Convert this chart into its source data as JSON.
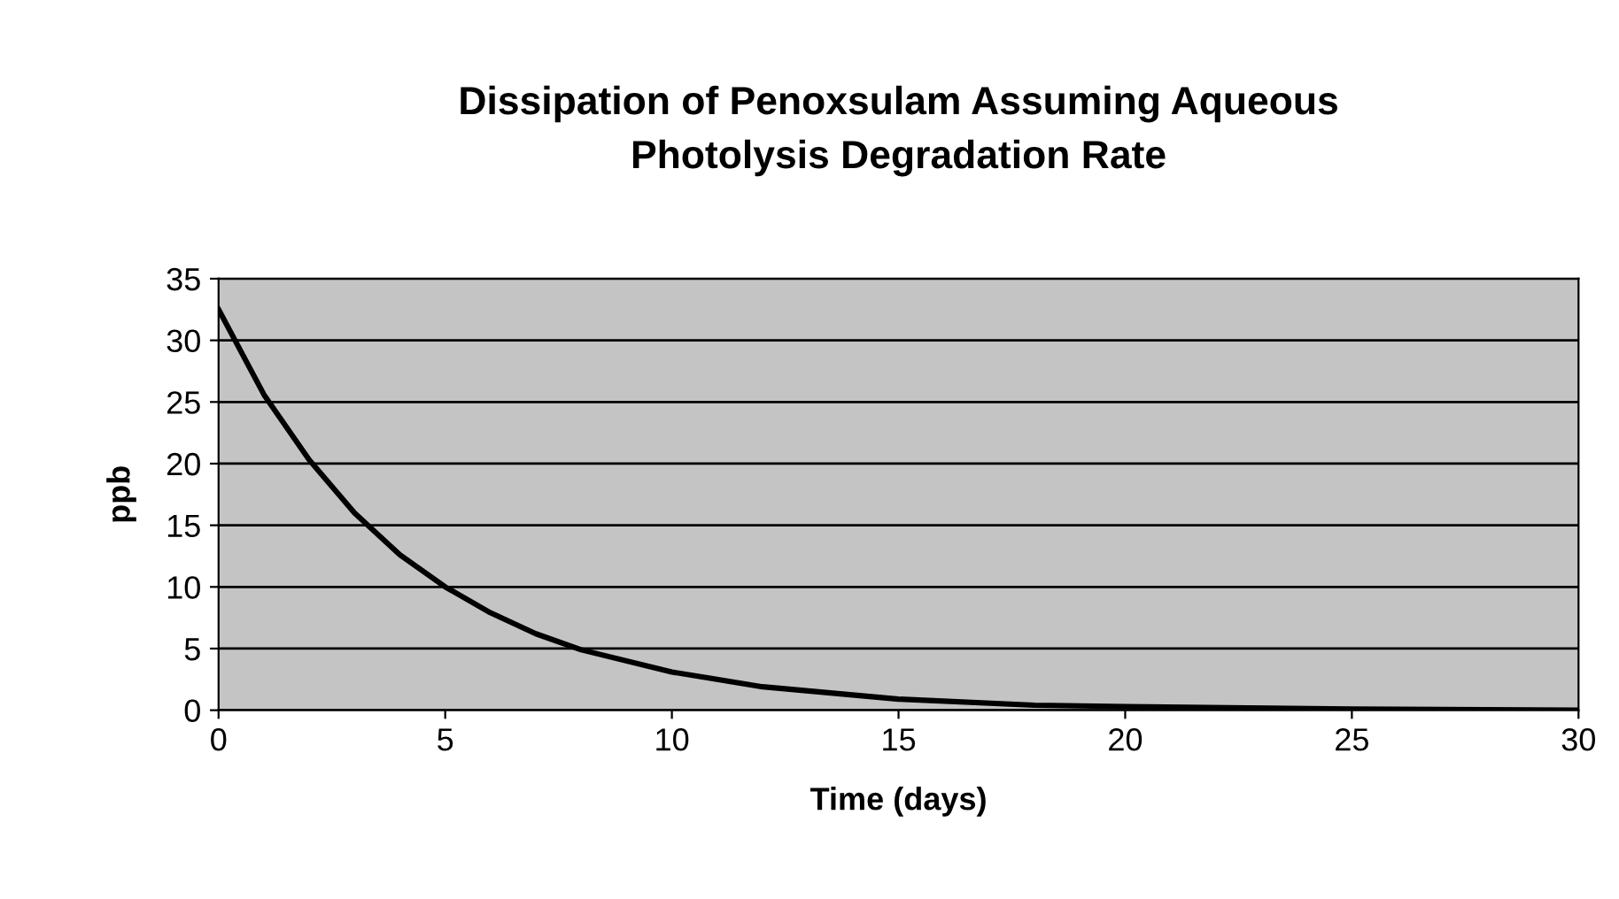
{
  "chart_data": {
    "type": "line",
    "title": "Dissipation of Penoxsulam Assuming Aqueous\nPhotolysis Degradation Rate",
    "xlabel": "Time (days)",
    "ylabel": "ppb",
    "x": [
      0,
      1,
      2,
      3,
      4,
      5,
      6,
      7,
      8,
      10,
      12,
      15,
      18,
      20,
      25,
      30
    ],
    "series": [
      {
        "color": "#000000",
        "values": [
          32.5,
          25.6,
          20.3,
          16,
          12.6,
          10,
          7.9,
          6.2,
          4.9,
          3.1,
          1.9,
          0.9,
          0.4,
          0.3,
          0.1,
          0
        ]
      }
    ],
    "xlim": [
      0,
      30
    ],
    "ylim": [
      0,
      35
    ],
    "xticks": [
      0,
      5,
      10,
      15,
      20,
      25,
      30
    ],
    "yticks": [
      0,
      5,
      10,
      15,
      20,
      25,
      30,
      35
    ],
    "grid": "y",
    "legend": false,
    "marker": "none",
    "line_style": "solid"
  }
}
